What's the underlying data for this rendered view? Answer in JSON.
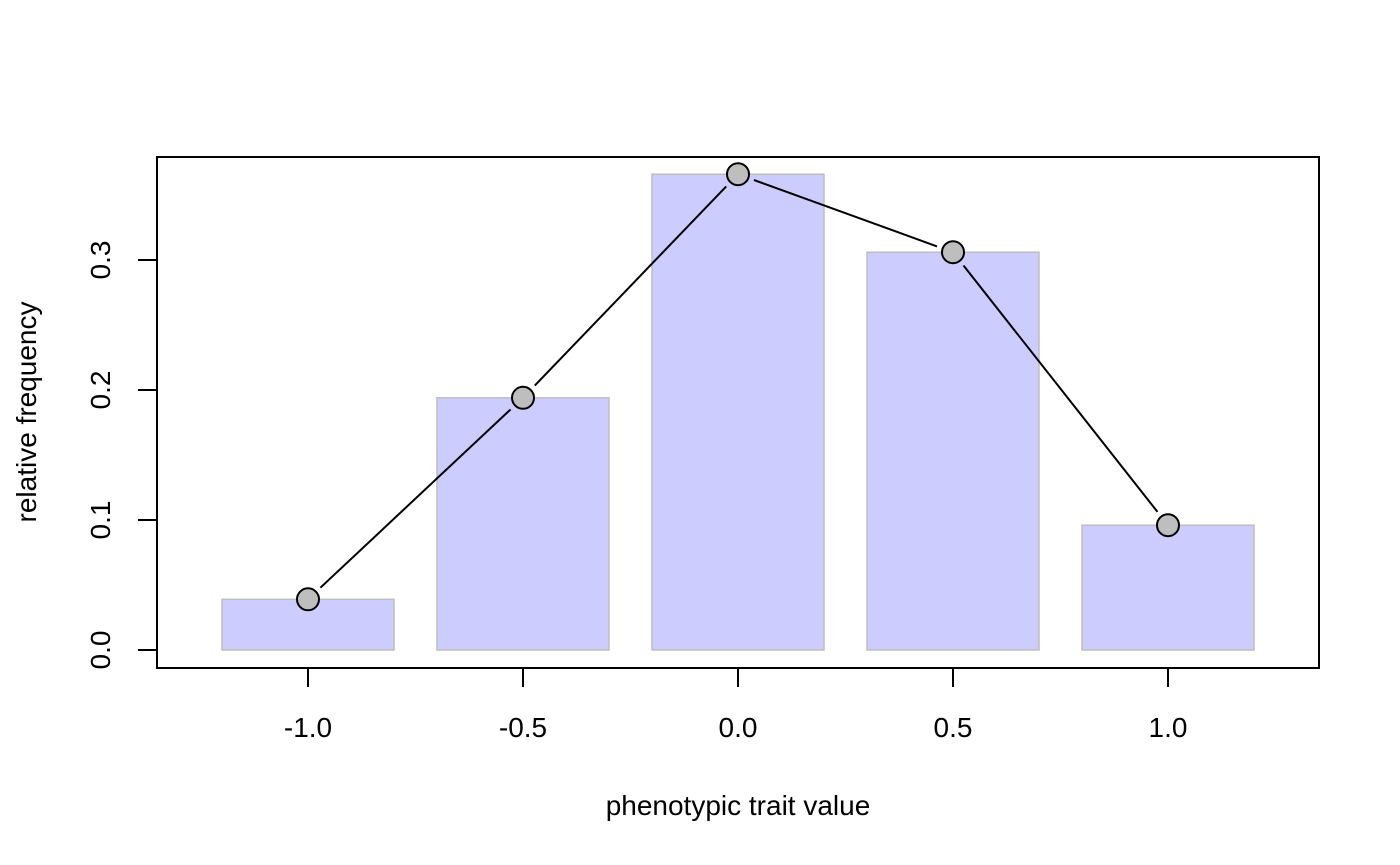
{
  "chart_data": {
    "type": "bar",
    "title": "",
    "xlabel": "phenotypic trait value",
    "ylabel": "relative frequency",
    "x": [
      -1.0,
      -0.5,
      0.0,
      0.5,
      1.0
    ],
    "values": [
      0.039,
      0.194,
      0.366,
      0.306,
      0.096
    ],
    "overlay": "line-with-points",
    "xlim": [
      -1.35,
      1.35
    ],
    "ylim": [
      0.0,
      0.38
    ],
    "x_ticks": [
      -1.0,
      -0.5,
      0.0,
      0.5,
      1.0
    ],
    "x_tick_labels": [
      "-1.0",
      "-0.5",
      "0.0",
      "0.5",
      "1.0"
    ],
    "y_ticks": [
      0.0,
      0.1,
      0.2,
      0.3
    ],
    "y_tick_labels": [
      "0.0",
      "0.1",
      "0.2",
      "0.3"
    ],
    "bar_width": 0.4,
    "grid": false,
    "colors": {
      "bar_fill": "#ccccff",
      "bar_stroke": "#bebebe",
      "point_fill": "#bebebe",
      "line": "#000000"
    }
  }
}
